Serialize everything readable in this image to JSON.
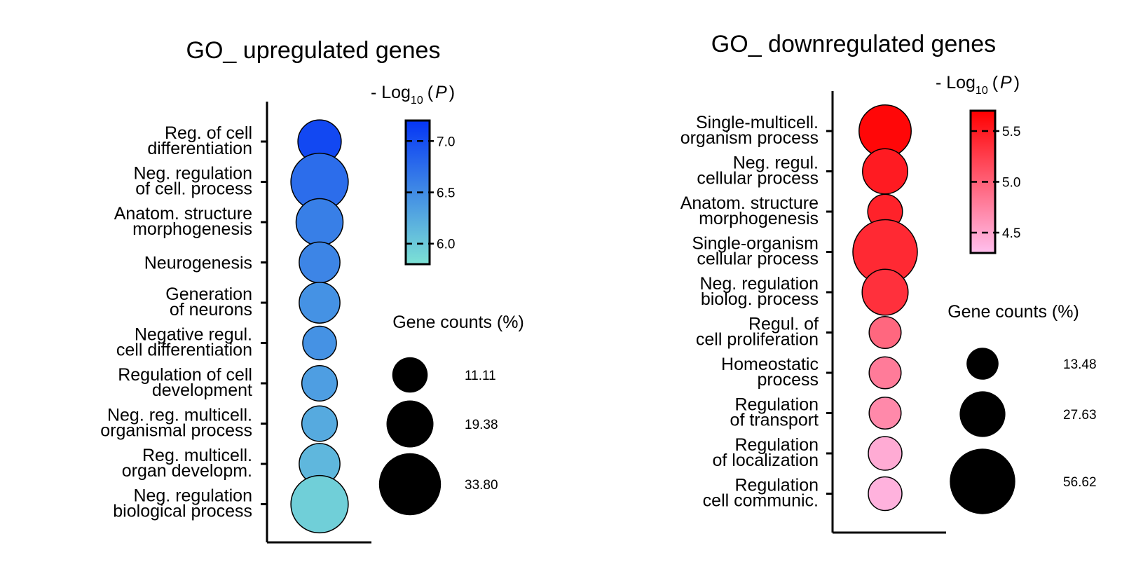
{
  "colors": {
    "up_high": "#0535f5",
    "up_low": "#7de2d5",
    "down_high": "#ff0000",
    "down_low": "#ffc0ee",
    "axis": "#000000",
    "size_legend": "#000000"
  },
  "chart_data": [
    {
      "type": "bubble",
      "title": "GO_ upregulated genes",
      "categories": [
        [
          "Reg. of cell",
          "differentiation"
        ],
        [
          "Neg. regulation",
          "of cell. process"
        ],
        [
          "Anatom. structure",
          "morphogenesis"
        ],
        [
          "Neurogenesis"
        ],
        [
          "Generation",
          "of neurons"
        ],
        [
          "Negative regul.",
          "cell differentiation"
        ],
        [
          "Regulation of cell",
          "development"
        ],
        [
          "Neg. reg. multicell.",
          "organismal process"
        ],
        [
          "Reg. multicell.",
          "organ developm."
        ],
        [
          "Neg. regulation",
          "biological process"
        ]
      ],
      "neg_log10_p": [
        7.05,
        6.75,
        6.6,
        6.55,
        6.45,
        6.45,
        6.35,
        6.25,
        6.15,
        5.95
      ],
      "gene_counts_pct": [
        16.5,
        29.0,
        19.4,
        14.7,
        14.7,
        10.0,
        11.1,
        11.1,
        14.7,
        29.0
      ],
      "color_legend": {
        "title_prefix": "- Log",
        "title_subscript": "10",
        "title_var": "P",
        "range": [
          5.8,
          7.2
        ],
        "ticks": [
          "7.0",
          "6.5",
          "6.0"
        ],
        "tick_values": [
          7.0,
          6.5,
          6.0
        ]
      },
      "size_legend": {
        "title": "Gene counts (%)",
        "labels": [
          "11.11",
          "19.38",
          "33.80"
        ],
        "values": [
          11.11,
          19.38,
          33.8
        ]
      }
    },
    {
      "type": "bubble",
      "title": "GO_ downregulated genes",
      "categories": [
        [
          "Single-multicell.",
          "organism process"
        ],
        [
          "Neg. regul.",
          "cellular process"
        ],
        [
          "Anatom. structure",
          "morphogenesis"
        ],
        [
          "Single-organism",
          "cellular process"
        ],
        [
          "Neg. regulation",
          "biolog. process"
        ],
        [
          "Regul. of",
          "cell proliferation"
        ],
        [
          "Homeostatic",
          "process"
        ],
        [
          "Regulation",
          "of transport"
        ],
        [
          "Regulation",
          "of localization"
        ],
        [
          "Regulation",
          "cell communic."
        ]
      ],
      "neg_log10_p": [
        5.65,
        5.5,
        5.45,
        5.4,
        5.35,
        4.95,
        4.8,
        4.7,
        4.45,
        4.4
      ],
      "gene_counts_pct": [
        36.0,
        27.0,
        16.0,
        55.0,
        28.0,
        13.5,
        13.5,
        13.5,
        15.0,
        15.0
      ],
      "color_legend": {
        "title_prefix": "- Log",
        "title_subscript": "10",
        "title_var": "P",
        "range": [
          4.3,
          5.7
        ],
        "ticks": [
          "5.5",
          "5.0",
          "4.5"
        ],
        "tick_values": [
          5.5,
          5.0,
          4.5
        ]
      },
      "size_legend": {
        "title": "Gene counts (%)",
        "labels": [
          "13.48",
          "27.63",
          "56.62"
        ],
        "values": [
          13.48,
          27.63,
          56.62
        ]
      }
    }
  ]
}
